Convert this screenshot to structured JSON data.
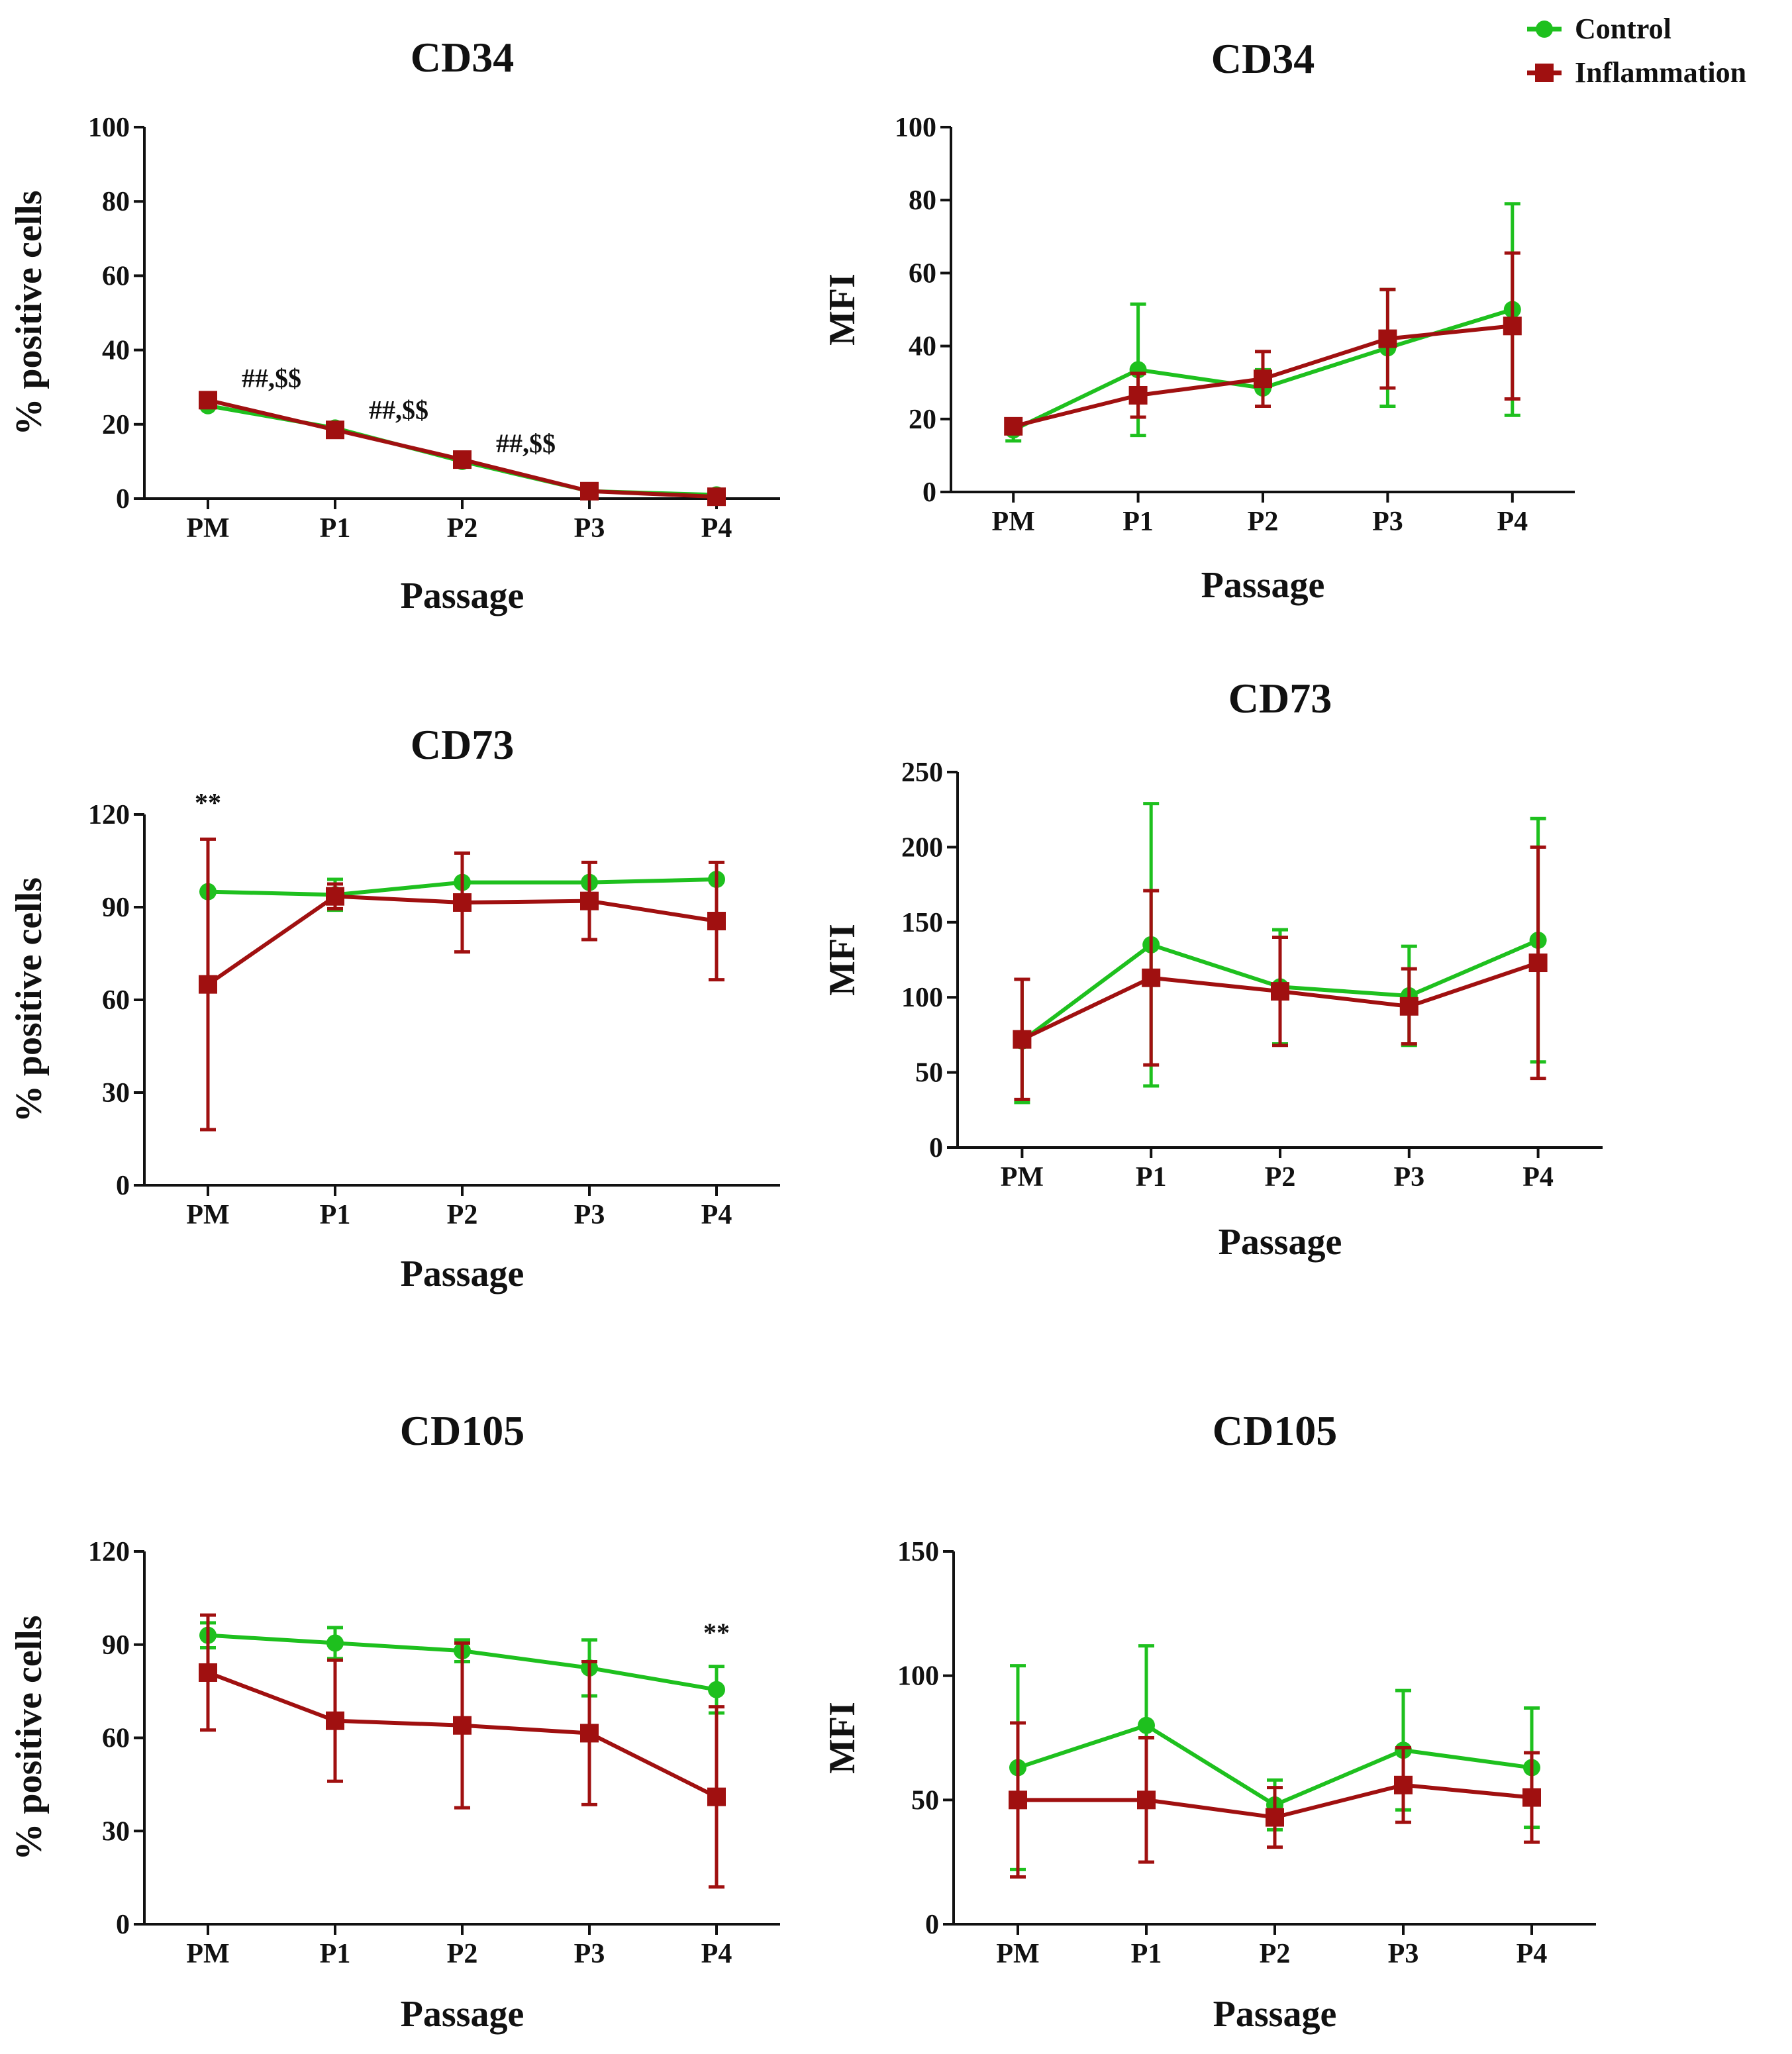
{
  "legend": {
    "items": [
      {
        "label": "Control",
        "color": "#1ec01e",
        "marker": "circle"
      },
      {
        "label": "Inflammation",
        "color": "#a01010",
        "marker": "square"
      }
    ]
  },
  "chart_data": [
    {
      "type": "line",
      "title": "CD34",
      "xlabel": "Passage",
      "ylabel": "% positive cells",
      "categories": [
        "PM",
        "P1",
        "P2",
        "P3",
        "P4"
      ],
      "ylim": [
        0,
        100
      ],
      "yticks": [
        0,
        20,
        40,
        60,
        80,
        100
      ],
      "series": [
        {
          "name": "Control",
          "values": [
            25,
            19,
            10,
            2,
            1
          ],
          "err_hi": [
            0,
            0,
            0,
            0,
            0
          ],
          "err_lo": [
            0,
            0,
            0,
            0,
            0
          ]
        },
        {
          "name": "Inflammation",
          "values": [
            26.5,
            18.5,
            10.5,
            2,
            0.5
          ],
          "err_hi": [
            0,
            0,
            0,
            0,
            0
          ],
          "err_lo": [
            0,
            0,
            0,
            0,
            0
          ]
        }
      ],
      "annotations": [
        {
          "text": "##,$$",
          "at": 0.5,
          "y": 30
        },
        {
          "text": "##,$$",
          "at": 1.5,
          "y": 21.5
        },
        {
          "text": "##,$$",
          "at": 2.5,
          "y": 12.5
        }
      ]
    },
    {
      "type": "line",
      "title": "CD34",
      "xlabel": "Passage",
      "ylabel": "MFI",
      "categories": [
        "PM",
        "P1",
        "P2",
        "P3",
        "P4"
      ],
      "ylim": [
        0,
        100
      ],
      "yticks": [
        0,
        20,
        40,
        60,
        80,
        100
      ],
      "series": [
        {
          "name": "Control",
          "values": [
            17,
            33.5,
            28.5,
            39.5,
            50
          ],
          "err_hi": [
            3,
            18,
            5,
            16,
            29
          ],
          "err_lo": [
            3,
            18,
            5,
            16,
            29
          ]
        },
        {
          "name": "Inflammation",
          "values": [
            18,
            26.5,
            31,
            42,
            45.5
          ],
          "err_hi": [
            2,
            6,
            7.5,
            13.5,
            20
          ],
          "err_lo": [
            2,
            6,
            7.5,
            13.5,
            20
          ]
        }
      ],
      "annotations": []
    },
    {
      "type": "line",
      "title": "CD73",
      "xlabel": "Passage",
      "ylabel": "% positive cells",
      "categories": [
        "PM",
        "P1",
        "P2",
        "P3",
        "P4"
      ],
      "ylim": [
        0,
        120
      ],
      "yticks": [
        0,
        30,
        60,
        90,
        120
      ],
      "series": [
        {
          "name": "Control",
          "values": [
            95,
            94,
            98,
            98,
            99
          ],
          "err_hi": [
            0,
            5,
            0,
            0,
            0
          ],
          "err_lo": [
            0,
            5,
            0,
            0,
            0
          ]
        },
        {
          "name": "Inflammation",
          "values": [
            65,
            93.5,
            91.5,
            92,
            85.5
          ],
          "err_hi": [
            47,
            4,
            16,
            12.5,
            19
          ],
          "err_lo": [
            47,
            4,
            16,
            12.5,
            19
          ]
        }
      ],
      "annotations": [
        {
          "text": "**",
          "at": 0,
          "y": 121
        }
      ]
    },
    {
      "type": "line",
      "title": "CD73",
      "xlabel": "Passage",
      "ylabel": "MFI",
      "categories": [
        "PM",
        "P1",
        "P2",
        "P3",
        "P4"
      ],
      "ylim": [
        0,
        250
      ],
      "yticks": [
        0,
        50,
        100,
        150,
        200,
        250
      ],
      "series": [
        {
          "name": "Control",
          "values": [
            71,
            135,
            107,
            101,
            138
          ],
          "err_hi": [
            41,
            94,
            38,
            33,
            81
          ],
          "err_lo": [
            41,
            94,
            38,
            33,
            81
          ]
        },
        {
          "name": "Inflammation",
          "values": [
            72,
            113,
            104,
            94,
            123
          ],
          "err_hi": [
            40,
            58,
            36,
            25,
            77
          ],
          "err_lo": [
            40,
            58,
            36,
            25,
            77
          ]
        }
      ],
      "annotations": []
    },
    {
      "type": "line",
      "title": "CD105",
      "xlabel": "Passage",
      "ylabel": "% positive cells",
      "categories": [
        "PM",
        "P1",
        "P2",
        "P3",
        "P4"
      ],
      "ylim": [
        0,
        120
      ],
      "yticks": [
        0,
        30,
        60,
        90,
        120
      ],
      "series": [
        {
          "name": "Control",
          "values": [
            93,
            90.5,
            88,
            82.5,
            75.5
          ],
          "err_hi": [
            4,
            5,
            3.5,
            9,
            7.5
          ],
          "err_lo": [
            4,
            5,
            3.5,
            9,
            7.5
          ]
        },
        {
          "name": "Inflammation",
          "values": [
            81,
            65.5,
            64,
            61.5,
            41
          ],
          "err_hi": [
            18.5,
            19.5,
            26.5,
            23,
            29
          ],
          "err_lo": [
            18.5,
            19.5,
            26.5,
            23,
            29
          ]
        }
      ],
      "annotations": [
        {
          "text": "**",
          "at": 4,
          "y": 91
        }
      ]
    },
    {
      "type": "line",
      "title": "CD105",
      "xlabel": "Passage",
      "ylabel": "MFI",
      "categories": [
        "PM",
        "P1",
        "P2",
        "P3",
        "P4"
      ],
      "ylim": [
        0,
        150
      ],
      "yticks": [
        0,
        50,
        100,
        150
      ],
      "series": [
        {
          "name": "Control",
          "values": [
            63,
            80,
            48,
            70,
            63
          ],
          "err_hi": [
            41,
            32,
            10,
            24,
            24
          ],
          "err_lo": [
            41,
            32,
            10,
            24,
            24
          ]
        },
        {
          "name": "Inflammation",
          "values": [
            50,
            50,
            43,
            56,
            51
          ],
          "err_hi": [
            31,
            25,
            12,
            15,
            18
          ],
          "err_lo": [
            31,
            25,
            12,
            15,
            18
          ]
        }
      ],
      "annotations": []
    }
  ]
}
